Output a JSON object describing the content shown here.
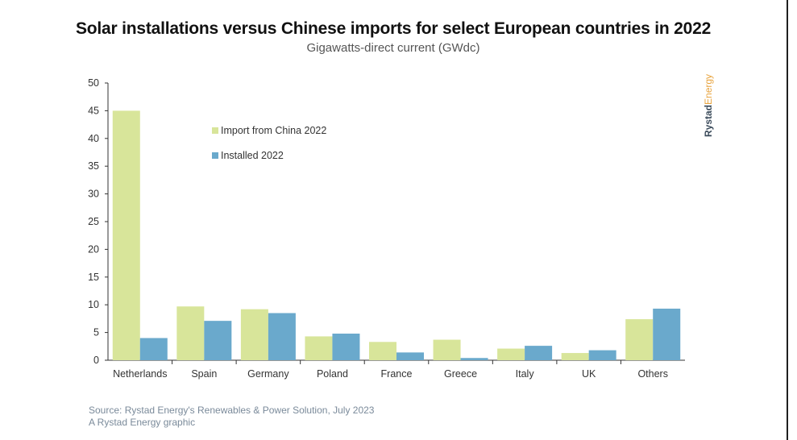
{
  "title": "Solar installations versus Chinese imports for select European countries in 2022",
  "subtitle": "Gigawatts-direct current (GWdc)",
  "brand": {
    "part1": "Rystad",
    "part2": "Energy"
  },
  "source": {
    "line1": "Source: Rystad Energy's Renewables & Power Solution, July 2023",
    "line2": "A Rystad Energy graphic"
  },
  "colors": {
    "import": "#d8e59a",
    "installed": "#6aa9cc",
    "axis": "#333333"
  },
  "chart_data": {
    "type": "bar",
    "categories": [
      "Netherlands",
      "Spain",
      "Germany",
      "Poland",
      "France",
      "Greece",
      "Italy",
      "UK",
      "Others"
    ],
    "series": [
      {
        "name": "Import from China 2022",
        "values": [
          45,
          9.7,
          9.2,
          4.3,
          3.3,
          3.7,
          2.1,
          1.3,
          7.4
        ]
      },
      {
        "name": "Installed 2022",
        "values": [
          4.0,
          7.1,
          8.5,
          4.8,
          1.4,
          0.4,
          2.6,
          1.8,
          9.3
        ]
      }
    ],
    "ylim": [
      0,
      50
    ],
    "yticks": [
      "0",
      "5",
      "10",
      "15",
      "20",
      "25",
      "30",
      "35",
      "40",
      "45",
      "50"
    ],
    "legend_position": "top-left",
    "grid": false
  }
}
